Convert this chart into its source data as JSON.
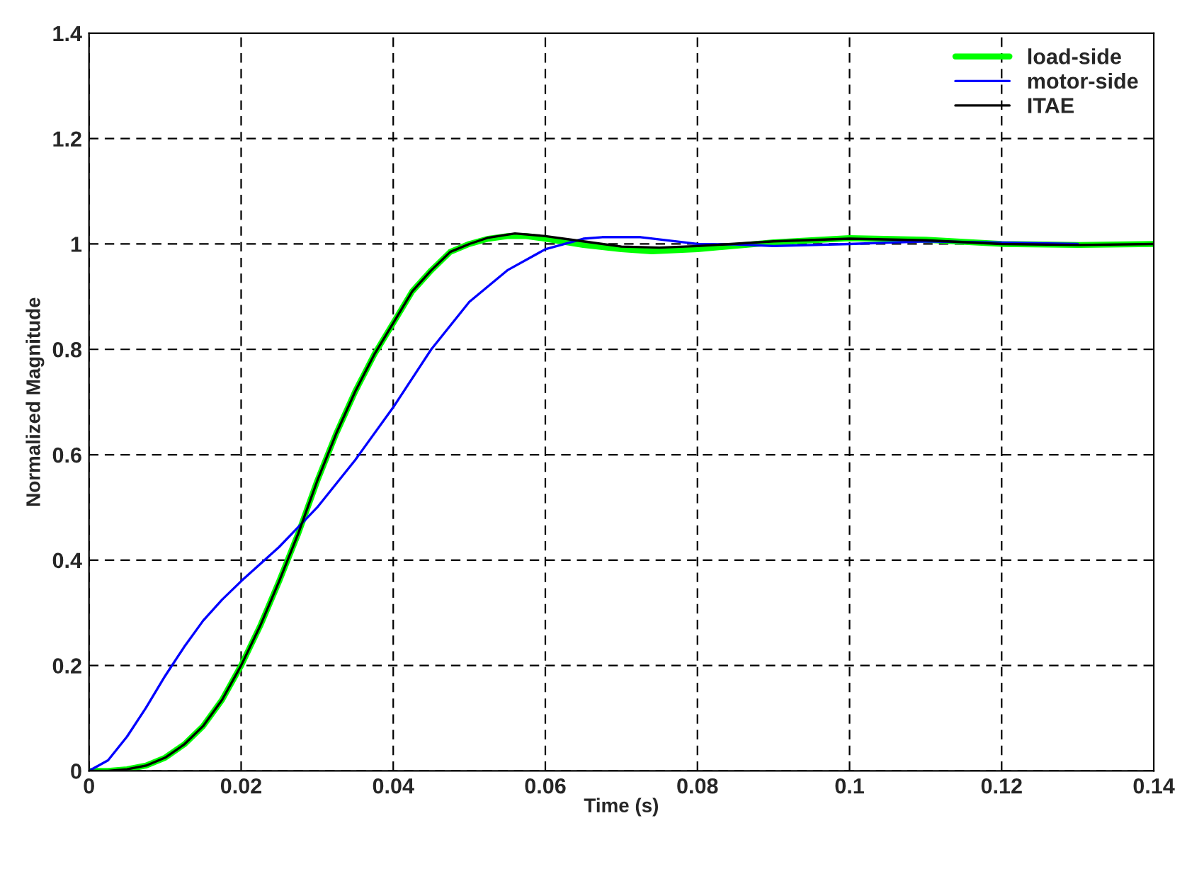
{
  "chart_data": {
    "type": "line",
    "xlabel": "Time (s)",
    "ylabel": "Normalized Magnitude",
    "xlim": [
      0,
      0.14
    ],
    "xticks": [
      0,
      0.02,
      0.04,
      0.06,
      0.08,
      0.1,
      0.12,
      0.14
    ],
    "ylim": [
      0,
      1.4
    ],
    "yticks": [
      0,
      0.2,
      0.4,
      0.6,
      0.8,
      1,
      1.2,
      1.4
    ],
    "grid": true,
    "legend": "top right",
    "series": [
      {
        "name": "load-side",
        "color": "#00ff00",
        "x": [
          0,
          0.0025,
          0.005,
          0.0075,
          0.01,
          0.0125,
          0.015,
          0.0175,
          0.02,
          0.0225,
          0.025,
          0.0275,
          0.03,
          0.0325,
          0.035,
          0.0375,
          0.04,
          0.0425,
          0.045,
          0.0475,
          0.05,
          0.0525,
          0.055,
          0.0575,
          0.06,
          0.065,
          0.07,
          0.074,
          0.08,
          0.09,
          0.1,
          0.11,
          0.12,
          0.13,
          0.14
        ],
        "values": [
          0,
          0,
          0.003,
          0.01,
          0.025,
          0.05,
          0.085,
          0.135,
          0.2,
          0.275,
          0.36,
          0.45,
          0.55,
          0.64,
          0.72,
          0.79,
          0.85,
          0.91,
          0.95,
          0.985,
          1.0,
          1.01,
          1.015,
          1.015,
          1.01,
          0.998,
          0.99,
          0.986,
          0.99,
          1.003,
          1.011,
          1.008,
          1.0,
          0.998,
          1.0
        ]
      },
      {
        "name": "motor-side",
        "color": "#0000ff",
        "x": [
          0,
          0.0025,
          0.005,
          0.0075,
          0.01,
          0.0125,
          0.015,
          0.0175,
          0.02,
          0.025,
          0.03,
          0.035,
          0.04,
          0.045,
          0.05,
          0.055,
          0.06,
          0.065,
          0.0675,
          0.0725,
          0.08,
          0.085,
          0.09,
          0.1,
          0.11,
          0.13
        ],
        "values": [
          0,
          0.02,
          0.065,
          0.12,
          0.18,
          0.235,
          0.285,
          0.325,
          0.36,
          0.425,
          0.5,
          0.59,
          0.69,
          0.8,
          0.89,
          0.95,
          0.99,
          1.01,
          1.013,
          1.013,
          1.0,
          0.999,
          0.996,
          1.0,
          1.005,
          1.0
        ]
      },
      {
        "name": "ITAE",
        "color": "#000000",
        "x": [
          0,
          0.0025,
          0.005,
          0.0075,
          0.01,
          0.0125,
          0.015,
          0.0175,
          0.02,
          0.0225,
          0.025,
          0.0275,
          0.03,
          0.0325,
          0.035,
          0.0375,
          0.04,
          0.0425,
          0.045,
          0.0475,
          0.05,
          0.0525,
          0.056,
          0.06,
          0.065,
          0.07,
          0.075,
          0.08,
          0.09,
          0.1,
          0.11,
          0.12,
          0.13,
          0.14
        ],
        "values": [
          0,
          0,
          0.003,
          0.01,
          0.025,
          0.05,
          0.085,
          0.135,
          0.2,
          0.275,
          0.36,
          0.45,
          0.55,
          0.64,
          0.72,
          0.79,
          0.85,
          0.91,
          0.95,
          0.985,
          1.0,
          1.012,
          1.02,
          1.015,
          1.005,
          0.995,
          0.993,
          0.996,
          1.005,
          1.01,
          1.007,
          1.0,
          0.998,
          1.0
        ]
      }
    ]
  }
}
